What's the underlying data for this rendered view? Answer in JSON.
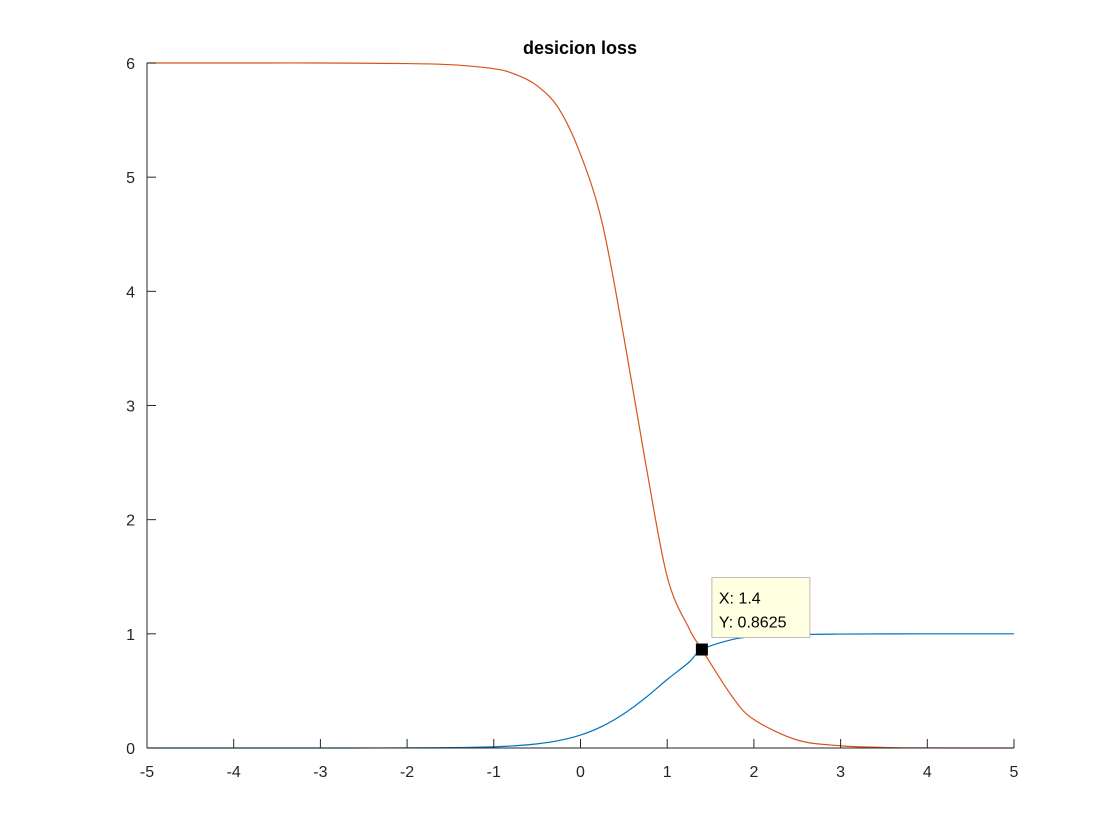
{
  "chart_data": {
    "type": "line",
    "title": "desicion loss",
    "xlabel": "",
    "ylabel": "",
    "xlim": [
      -5,
      5
    ],
    "ylim": [
      0,
      6
    ],
    "xticks": [
      -5,
      -4,
      -3,
      -2,
      -1,
      0,
      1,
      2,
      3,
      4,
      5
    ],
    "yticks": [
      0,
      1,
      2,
      3,
      4,
      5,
      6
    ],
    "grid": false,
    "legend": "none",
    "series": [
      {
        "color": "#0072BD",
        "x": [
          -5,
          -4,
          -3,
          -2,
          -1.5,
          -1,
          -0.75,
          -0.5,
          -0.25,
          0,
          0.25,
          0.5,
          0.75,
          1,
          1.25,
          1.4,
          1.75,
          2,
          2.5,
          3,
          4,
          5
        ],
        "y": [
          0,
          0,
          0,
          0.001,
          0.003,
          0.01,
          0.02,
          0.036,
          0.065,
          0.113,
          0.19,
          0.3,
          0.44,
          0.6,
          0.75,
          0.8625,
          0.95,
          0.975,
          0.993,
          0.998,
          1,
          1
        ]
      },
      {
        "color": "#D95319",
        "x": [
          -5,
          -4,
          -3,
          -2,
          -1.5,
          -1,
          -0.75,
          -0.5,
          -0.25,
          0,
          0.25,
          0.5,
          0.75,
          1,
          1.25,
          1.4,
          1.75,
          2,
          2.5,
          3,
          3.5,
          4,
          5
        ],
        "y": [
          6,
          6,
          6,
          5.995,
          5.985,
          5.95,
          5.9,
          5.8,
          5.6,
          5.2,
          4.6,
          3.6,
          2.5,
          1.5,
          1.05,
          0.8625,
          0.45,
          0.25,
          0.07,
          0.02,
          0.005,
          0.001,
          0
        ]
      }
    ],
    "datatip": {
      "x": 1.4,
      "y": 0.8625,
      "x_text": "X: 1.4",
      "y_text": "Y: 0.8625"
    }
  }
}
